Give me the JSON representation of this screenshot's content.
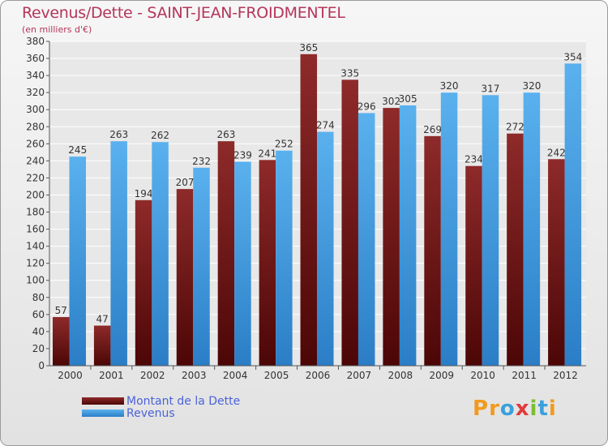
{
  "header": {
    "title": "Revenus/Dette - SAINT-JEAN-FROIDMENTEL",
    "subtitle": "(en milliers d'€)"
  },
  "legend": {
    "items": [
      {
        "label": "Montant de la Dette",
        "color": "#7a1a1a"
      },
      {
        "label": "Revenus",
        "color": "#3f97df"
      }
    ]
  },
  "logo": {
    "text": "Proxiti",
    "letters": [
      "P",
      "r",
      "o",
      "x",
      "i",
      "t",
      "i"
    ],
    "colors": [
      "#f29a1e",
      "#f29a1e",
      "#3aa0dc",
      "#e23a3a",
      "#7cbd32",
      "#3aa0dc",
      "#f29a1e"
    ]
  },
  "chart_data": {
    "type": "bar",
    "categories": [
      "2000",
      "2001",
      "2002",
      "2003",
      "2004",
      "2005",
      "2006",
      "2007",
      "2008",
      "2009",
      "2010",
      "2011",
      "2012"
    ],
    "series": [
      {
        "name": "Montant de la Dette",
        "values": [
          57,
          47,
          194,
          207,
          263,
          241,
          365,
          335,
          302,
          269,
          234,
          272,
          242
        ],
        "color": "#7a1a1a"
      },
      {
        "name": "Revenus",
        "values": [
          245,
          263,
          262,
          232,
          239,
          252,
          274,
          296,
          305,
          320,
          317,
          320,
          354
        ],
        "color": "#3f97df"
      }
    ],
    "ylim": [
      0,
      380
    ],
    "yticks": [
      0,
      20,
      40,
      60,
      80,
      100,
      120,
      140,
      160,
      180,
      200,
      220,
      240,
      260,
      280,
      300,
      320,
      340,
      360,
      380
    ],
    "grid": true,
    "legend_position": "bottom-left"
  }
}
